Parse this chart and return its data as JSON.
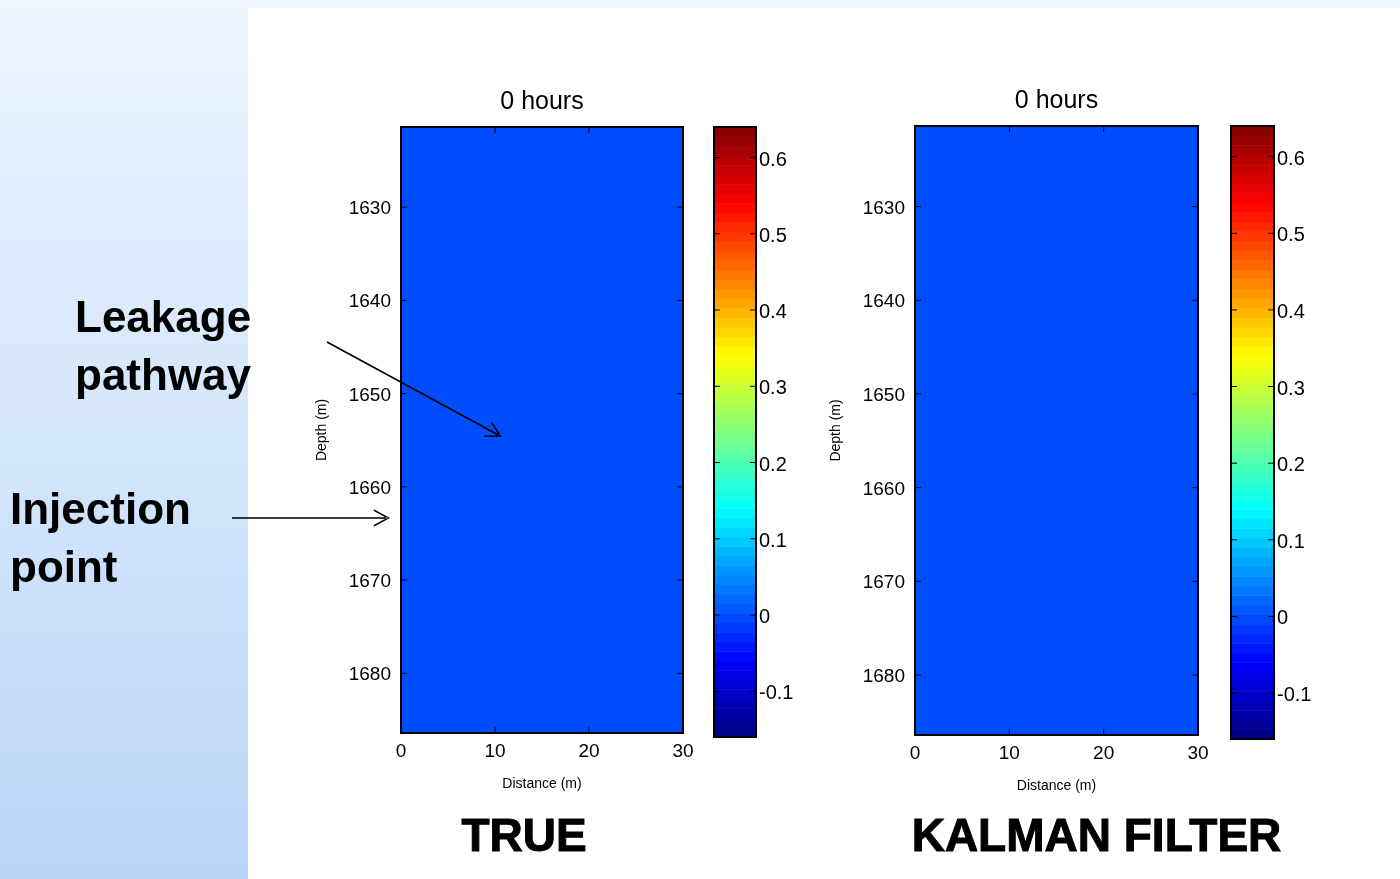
{
  "chart_data": [
    {
      "type": "heatmap",
      "title": "0 hours",
      "xlabel": "Distance (m)",
      "ylabel": "Depth (m)",
      "cells": [
        [
          0
        ]
      ],
      "xlim": [
        0,
        30
      ],
      "xticks": [
        0,
        10,
        20,
        30
      ],
      "ylim": [
        1686.4,
        1621.4
      ],
      "yticks": [
        1630,
        1640,
        1650,
        1660,
        1670,
        1680
      ],
      "clim": [
        -0.16,
        0.64
      ],
      "cticks": [
        -0.1,
        0,
        0.1,
        0.2,
        0.3,
        0.4,
        0.5,
        0.6
      ],
      "annotations": [
        "Leakage pathway",
        "Injection point",
        "TRUE"
      ]
    },
    {
      "type": "heatmap",
      "title": "0 hours",
      "xlabel": "Distance (m)",
      "ylabel": "Depth (m)",
      "cells": [
        [
          0
        ]
      ],
      "xlim": [
        0,
        30
      ],
      "xticks": [
        0,
        10,
        20,
        30
      ],
      "ylim": [
        1686.4,
        1621.4
      ],
      "yticks": [
        1630,
        1640,
        1650,
        1660,
        1670,
        1680
      ],
      "clim": [
        -0.16,
        0.64
      ],
      "cticks": [
        -0.1,
        0,
        0.1,
        0.2,
        0.3,
        0.4,
        0.5,
        0.6
      ],
      "annotations": [
        "KALMAN FILTER"
      ]
    }
  ]
}
